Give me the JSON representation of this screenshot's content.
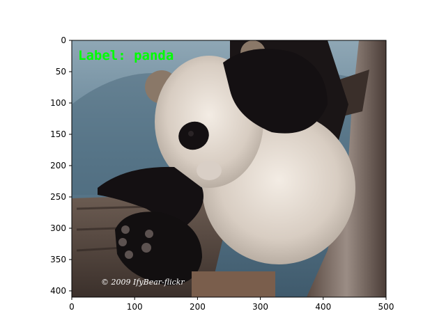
{
  "image": {
    "overlay_label": "Label: panda",
    "overlay_label_color": "#00ff00",
    "credit_text": "© 2009 IfyBear-flickr"
  },
  "axes": {
    "x_ticks": [
      0,
      100,
      200,
      300,
      400,
      500
    ],
    "y_ticks": [
      0,
      50,
      100,
      150,
      200,
      250,
      300,
      350,
      400
    ],
    "x_range": [
      0,
      500
    ],
    "y_range": [
      0,
      410
    ],
    "y_inverted": true
  }
}
